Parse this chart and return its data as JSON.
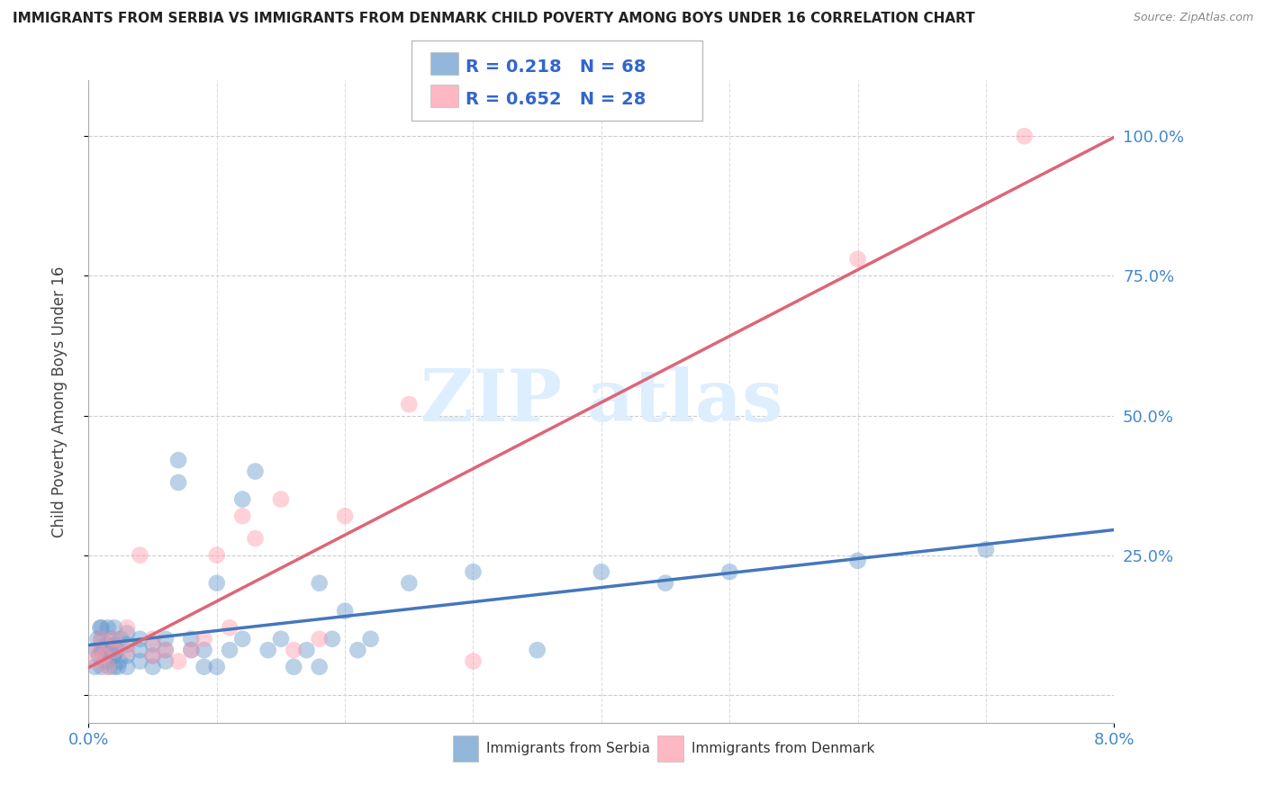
{
  "title": "IMMIGRANTS FROM SERBIA VS IMMIGRANTS FROM DENMARK CHILD POVERTY AMONG BOYS UNDER 16 CORRELATION CHART",
  "source": "Source: ZipAtlas.com",
  "ylabel": "Child Poverty Among Boys Under 16",
  "xlim": [
    0.0,
    0.08
  ],
  "ylim": [
    -0.05,
    1.1
  ],
  "serbia_R": 0.218,
  "serbia_N": 68,
  "denmark_R": 0.652,
  "denmark_N": 28,
  "serbia_color": "#6699cc",
  "denmark_color": "#ff99aa",
  "serbia_line_color": "#4477bb",
  "denmark_line_color": "#dd6677",
  "legend_R_color": "#4477bb",
  "legend_N_color": "#4477bb",
  "watermark_color": "#ddeeff",
  "serbia_x": [
    0.0005,
    0.0006,
    0.0007,
    0.0008,
    0.0009,
    0.001,
    0.001,
    0.001,
    0.001,
    0.0012,
    0.0013,
    0.0014,
    0.0015,
    0.0016,
    0.0017,
    0.0018,
    0.0019,
    0.002,
    0.002,
    0.002,
    0.002,
    0.0022,
    0.0023,
    0.0024,
    0.0025,
    0.003,
    0.003,
    0.003,
    0.003,
    0.004,
    0.004,
    0.004,
    0.005,
    0.005,
    0.005,
    0.006,
    0.006,
    0.006,
    0.007,
    0.007,
    0.008,
    0.008,
    0.009,
    0.009,
    0.01,
    0.01,
    0.011,
    0.012,
    0.012,
    0.013,
    0.014,
    0.015,
    0.016,
    0.017,
    0.018,
    0.018,
    0.019,
    0.02,
    0.021,
    0.022,
    0.025,
    0.03,
    0.035,
    0.04,
    0.045,
    0.05,
    0.06,
    0.07
  ],
  "serbia_y": [
    0.05,
    0.08,
    0.1,
    0.07,
    0.12,
    0.05,
    0.08,
    0.1,
    0.12,
    0.08,
    0.06,
    0.09,
    0.12,
    0.05,
    0.08,
    0.1,
    0.07,
    0.05,
    0.07,
    0.09,
    0.12,
    0.08,
    0.05,
    0.06,
    0.1,
    0.07,
    0.09,
    0.11,
    0.05,
    0.08,
    0.1,
    0.06,
    0.05,
    0.07,
    0.09,
    0.08,
    0.1,
    0.06,
    0.38,
    0.42,
    0.08,
    0.1,
    0.05,
    0.08,
    0.05,
    0.2,
    0.08,
    0.35,
    0.1,
    0.4,
    0.08,
    0.1,
    0.05,
    0.08,
    0.2,
    0.05,
    0.1,
    0.15,
    0.08,
    0.1,
    0.2,
    0.22,
    0.08,
    0.22,
    0.2,
    0.22,
    0.24,
    0.26
  ],
  "denmark_x": [
    0.0005,
    0.0007,
    0.001,
    0.0012,
    0.0015,
    0.002,
    0.002,
    0.003,
    0.003,
    0.004,
    0.005,
    0.005,
    0.006,
    0.007,
    0.008,
    0.009,
    0.01,
    0.011,
    0.012,
    0.013,
    0.015,
    0.016,
    0.018,
    0.02,
    0.025,
    0.03,
    0.06,
    0.073
  ],
  "denmark_y": [
    0.06,
    0.08,
    0.1,
    0.07,
    0.05,
    0.08,
    0.1,
    0.08,
    0.12,
    0.25,
    0.07,
    0.1,
    0.08,
    0.06,
    0.08,
    0.1,
    0.25,
    0.12,
    0.32,
    0.28,
    0.35,
    0.08,
    0.1,
    0.32,
    0.52,
    0.06,
    0.78,
    1.0
  ]
}
